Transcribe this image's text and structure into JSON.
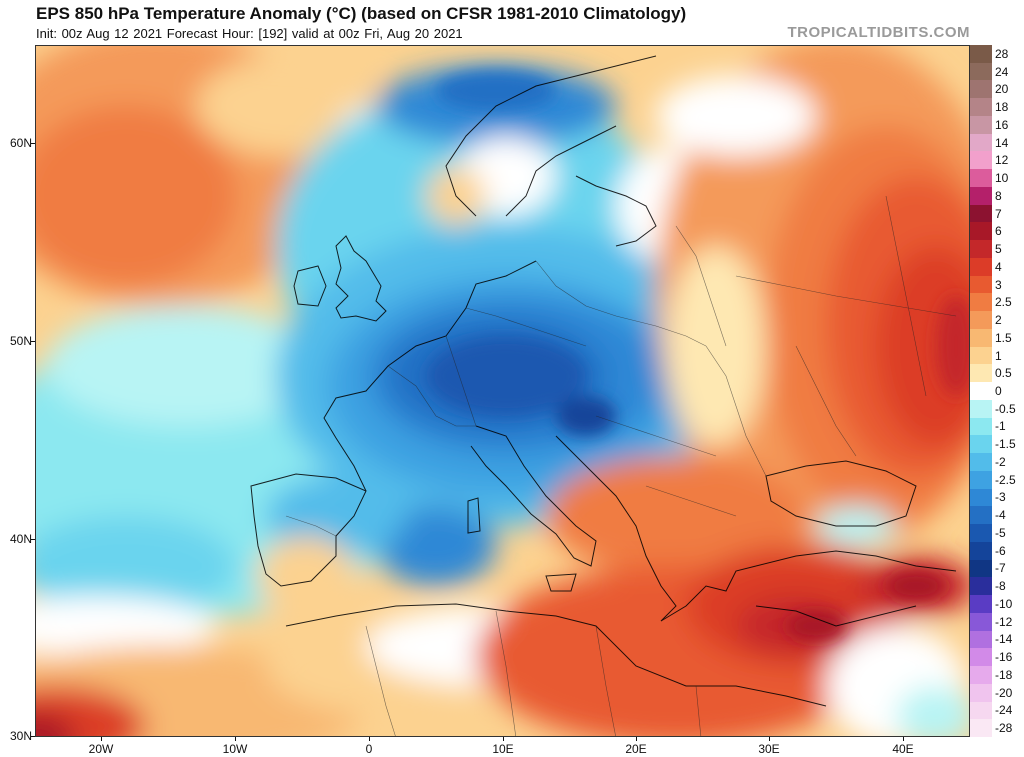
{
  "header": {
    "title": "EPS 850 hPa Temperature Anomaly (°C) (based on CFSR 1981-2010 Climatology)",
    "subtitle": "Init: 00z Aug 12 2021   Forecast Hour: [192]   valid at 00z Fri, Aug 20 2021",
    "brand": "TROPICALTIDBITS.COM"
  },
  "axes": {
    "lat_labels": [
      "60N",
      "50N",
      "40N",
      "30N"
    ],
    "lon_labels": [
      "20W",
      "10W",
      "0",
      "10E",
      "20E",
      "30E",
      "40E"
    ]
  },
  "legend": {
    "items": [
      {
        "label": "28",
        "color": "#7a5a48"
      },
      {
        "label": "24",
        "color": "#8c6a5c"
      },
      {
        "label": "20",
        "color": "#9e7470"
      },
      {
        "label": "18",
        "color": "#b48488"
      },
      {
        "label": "16",
        "color": "#c896a4"
      },
      {
        "label": "14",
        "color": "#e2a8c8"
      },
      {
        "label": "12",
        "color": "#f2a0cc"
      },
      {
        "label": "10",
        "color": "#dc5c9c"
      },
      {
        "label": "8",
        "color": "#b4206a"
      },
      {
        "label": "7",
        "color": "#8c1230"
      },
      {
        "label": "6",
        "color": "#a81828"
      },
      {
        "label": "5",
        "color": "#c4282a"
      },
      {
        "label": "4",
        "color": "#dc3c28"
      },
      {
        "label": "3",
        "color": "#e85a30"
      },
      {
        "label": "2.5",
        "color": "#f07c42"
      },
      {
        "label": "2",
        "color": "#f49a5a"
      },
      {
        "label": "1.5",
        "color": "#f8b872"
      },
      {
        "label": "1",
        "color": "#fcd290"
      },
      {
        "label": "0.5",
        "color": "#fee8b2"
      },
      {
        "label": "0",
        "color": "#ffffff"
      },
      {
        "label": "-0.5",
        "color": "#b8f4f4"
      },
      {
        "label": "-1",
        "color": "#8ce8f0"
      },
      {
        "label": "-1.5",
        "color": "#6ad4ee"
      },
      {
        "label": "-2",
        "color": "#52bcea"
      },
      {
        "label": "-2.5",
        "color": "#3ea2e2"
      },
      {
        "label": "-3",
        "color": "#2e88d6"
      },
      {
        "label": "-4",
        "color": "#2470c4"
      },
      {
        "label": "-5",
        "color": "#1a58b0"
      },
      {
        "label": "-6",
        "color": "#14449a"
      },
      {
        "label": "-7",
        "color": "#103684"
      },
      {
        "label": "-8",
        "color": "#2a2e9c"
      },
      {
        "label": "-10",
        "color": "#5a3cc4"
      },
      {
        "label": "-12",
        "color": "#8858d8"
      },
      {
        "label": "-14",
        "color": "#b070e0"
      },
      {
        "label": "-16",
        "color": "#d28ae8"
      },
      {
        "label": "-18",
        "color": "#e6aaec"
      },
      {
        "label": "-20",
        "color": "#f0c4ee"
      },
      {
        "label": "-24",
        "color": "#f6d8f0"
      },
      {
        "label": "-28",
        "color": "#fae8f4"
      }
    ]
  },
  "colors": {
    "cold_core": "#1a58b0",
    "warm_core": "#c4282a",
    "coastline": "#000000",
    "borders": "#222222"
  }
}
